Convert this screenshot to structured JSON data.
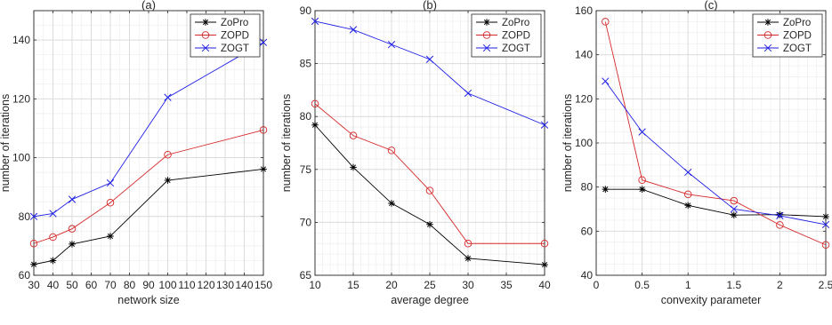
{
  "chart_data": [
    {
      "type": "line",
      "title": "(a)",
      "xlabel": "network size",
      "ylabel": "number of iterations",
      "xlim": [
        30,
        150
      ],
      "ylim": [
        60,
        150
      ],
      "xticks": [
        30,
        40,
        50,
        60,
        70,
        80,
        90,
        100,
        110,
        120,
        130,
        140,
        150
      ],
      "yticks": [
        60,
        80,
        100,
        120,
        140
      ],
      "xminor": 5,
      "yminor": 5,
      "grid": true,
      "legend": "top-right",
      "x": [
        30,
        40,
        50,
        70,
        100,
        150
      ],
      "series": [
        {
          "name": "ZoPro",
          "color": "#000000",
          "marker": "star",
          "values": [
            63.7,
            65.0,
            70.6,
            73.3,
            92.3,
            96.1
          ]
        },
        {
          "name": "ZOPD",
          "color": "#d62728",
          "marker": "circle",
          "values": [
            70.8,
            73.0,
            75.8,
            84.7,
            101.0,
            109.4
          ]
        },
        {
          "name": "ZOGT",
          "color": "#1f1fe6",
          "marker": "x",
          "values": [
            80.0,
            81.0,
            85.8,
            91.4,
            120.5,
            139.2
          ]
        }
      ]
    },
    {
      "type": "line",
      "title": "(b)",
      "xlabel": "average degree",
      "ylabel": "number of iterations",
      "xlim": [
        10,
        40
      ],
      "ylim": [
        65,
        90
      ],
      "xticks": [
        10,
        15,
        20,
        25,
        30,
        35,
        40
      ],
      "yticks": [
        65,
        70,
        75,
        80,
        85,
        90
      ],
      "xminor": 1,
      "yminor": 1,
      "grid": true,
      "legend": "top-right",
      "x": [
        10,
        15,
        20,
        25,
        30,
        40
      ],
      "series": [
        {
          "name": "ZoPro",
          "color": "#000000",
          "marker": "star",
          "values": [
            79.2,
            75.2,
            71.8,
            69.8,
            66.6,
            66.0
          ]
        },
        {
          "name": "ZOPD",
          "color": "#d62728",
          "marker": "circle",
          "values": [
            81.2,
            78.2,
            76.8,
            73.0,
            68.0,
            68.0
          ]
        },
        {
          "name": "ZOGT",
          "color": "#1f1fe6",
          "marker": "x",
          "values": [
            89.0,
            88.2,
            86.8,
            85.4,
            82.2,
            79.2
          ]
        }
      ]
    },
    {
      "type": "line",
      "title": "(c)",
      "xlabel": "convexity parameter",
      "ylabel": "number of iterations",
      "xlim": [
        0,
        2.5
      ],
      "ylim": [
        40,
        160
      ],
      "xticks": [
        0,
        0.5,
        1,
        1.5,
        2,
        2.5
      ],
      "yticks": [
        40,
        60,
        80,
        100,
        120,
        140,
        160
      ],
      "xminor": 0.1,
      "yminor": 5,
      "grid": true,
      "legend": "top-right",
      "x": [
        0.1,
        0.5,
        1,
        1.5,
        2,
        2.5
      ],
      "series": [
        {
          "name": "ZoPro",
          "color": "#000000",
          "marker": "star",
          "values": [
            79.0,
            79.0,
            71.7,
            67.3,
            67.5,
            66.6
          ]
        },
        {
          "name": "ZOPD",
          "color": "#d62728",
          "marker": "circle",
          "values": [
            155.0,
            83.2,
            76.7,
            73.8,
            62.8,
            53.8
          ]
        },
        {
          "name": "ZOGT",
          "color": "#1f1fe6",
          "marker": "x",
          "values": [
            128.0,
            105.0,
            86.7,
            70.0,
            67.0,
            63.0
          ]
        }
      ]
    }
  ]
}
